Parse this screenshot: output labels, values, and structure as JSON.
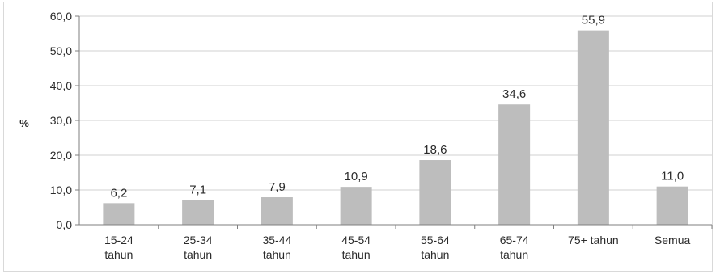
{
  "chart_data": {
    "type": "bar",
    "title": "",
    "xlabel": "",
    "ylabel": "%",
    "ylim": [
      0,
      60
    ],
    "yticks": [
      "0,0",
      "10,0",
      "20,0",
      "30,0",
      "40,0",
      "50,0",
      "60,0"
    ],
    "grid": true,
    "legend": "none",
    "bar_color": "#bdbdbd",
    "grid_color": "#d0d0d0",
    "categories": [
      [
        "15-24",
        "tahun"
      ],
      [
        "25-34",
        "tahun"
      ],
      [
        "35-44",
        "tahun"
      ],
      [
        "45-54",
        "tahun"
      ],
      [
        "55-64",
        "tahun"
      ],
      [
        "65-74",
        "tahun"
      ],
      [
        "75+ tahun"
      ],
      [
        "Semua"
      ]
    ],
    "values": [
      6.2,
      7.1,
      7.9,
      10.9,
      18.6,
      34.6,
      55.9,
      11.0
    ],
    "value_labels": [
      "6,2",
      "7,1",
      "7,9",
      "10,9",
      "18,6",
      "34,6",
      "55,9",
      "11,0"
    ]
  }
}
